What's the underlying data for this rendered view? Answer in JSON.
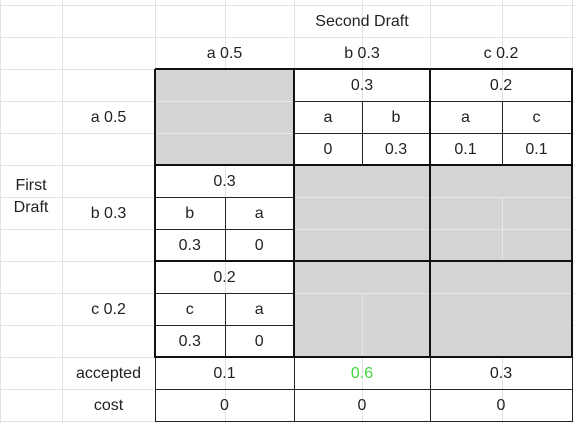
{
  "header": {
    "title": "Second Draft",
    "row_title": "First Draft"
  },
  "columns": [
    "a 0.5",
    "b 0.3",
    "c 0.2"
  ],
  "rows": [
    "a 0.5",
    "b 0.3",
    "c 0.2"
  ],
  "blocks": [
    {
      "prob": "0.3",
      "labels": [
        "a",
        "b"
      ],
      "values": [
        "0",
        "0.3"
      ]
    },
    {
      "prob": "0.2",
      "labels": [
        "a",
        "c"
      ],
      "values": [
        "0.1",
        "0.1"
      ]
    },
    {
      "prob": "0.3",
      "labels": [
        "b",
        "a"
      ],
      "values": [
        "0.3",
        "0"
      ]
    },
    {
      "prob": "0.2",
      "labels": [
        "c",
        "a"
      ],
      "values": [
        "0.3",
        "0"
      ]
    }
  ],
  "footer": {
    "accepted": {
      "label": "accepted",
      "values": [
        "0.1",
        "0.6",
        "0.3"
      ]
    },
    "cost": {
      "label": "cost",
      "values": [
        "0",
        "0",
        "0"
      ]
    }
  }
}
